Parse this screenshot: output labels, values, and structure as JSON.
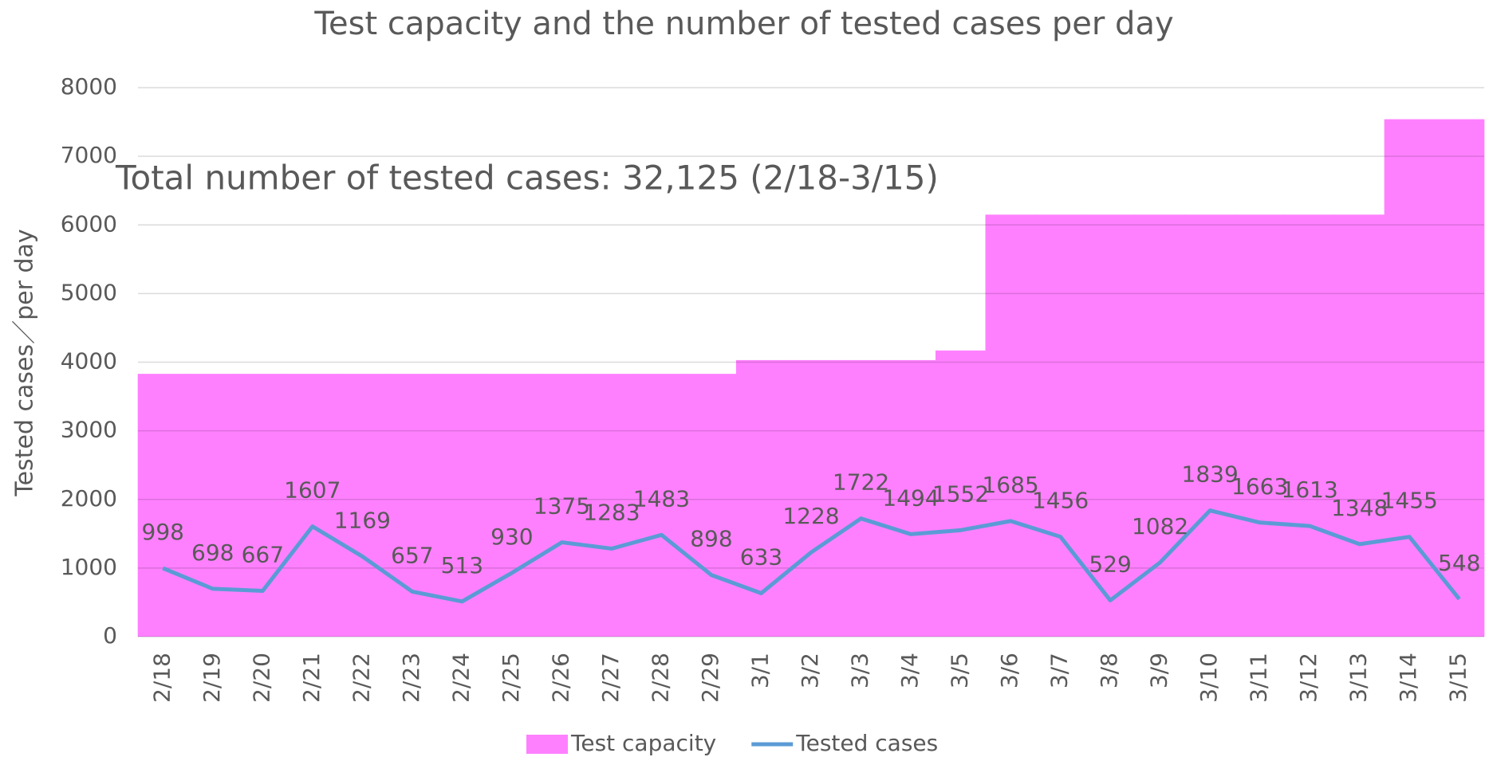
{
  "chart_data": {
    "type": "combo",
    "title": "Test capacity and the number of tested cases per day",
    "annotation": "Total number of tested cases: 32,125  (2/18-3/15)",
    "y_label": "Tested cases／per day",
    "categories": [
      "2/18",
      "2/19",
      "2/20",
      "2/21",
      "2/22",
      "2/23",
      "2/24",
      "2/25",
      "2/26",
      "2/27",
      "2/28",
      "2/29",
      "3/1",
      "3/2",
      "3/3",
      "3/4",
      "3/5",
      "3/6",
      "3/7",
      "3/8",
      "3/9",
      "3/10",
      "3/11",
      "3/12",
      "3/13",
      "3/14",
      "3/15"
    ],
    "series": [
      {
        "name": "Test capacity",
        "type": "bar",
        "color": "#ff80ff",
        "values": [
          3830,
          3830,
          3830,
          3830,
          3830,
          3830,
          3830,
          3830,
          3830,
          3830,
          3830,
          3830,
          4030,
          4030,
          4030,
          4030,
          4170,
          6150,
          6150,
          6150,
          6150,
          6150,
          6150,
          6150,
          6150,
          7540,
          7540
        ]
      },
      {
        "name": "Tested cases",
        "type": "line",
        "color": "#5b9bd5",
        "data_labels": true,
        "values": [
          998,
          698,
          667,
          1607,
          1169,
          657,
          513,
          930,
          1375,
          1283,
          1483,
          898,
          633,
          1228,
          1722,
          1494,
          1552,
          1685,
          1456,
          529,
          1082,
          1839,
          1663,
          1613,
          1348,
          1455,
          548
        ]
      }
    ],
    "ylim": [
      0,
      8000
    ],
    "yticks": [
      0,
      1000,
      2000,
      3000,
      4000,
      5000,
      6000,
      7000,
      8000
    ],
    "grid": true,
    "legend": "bottom"
  }
}
